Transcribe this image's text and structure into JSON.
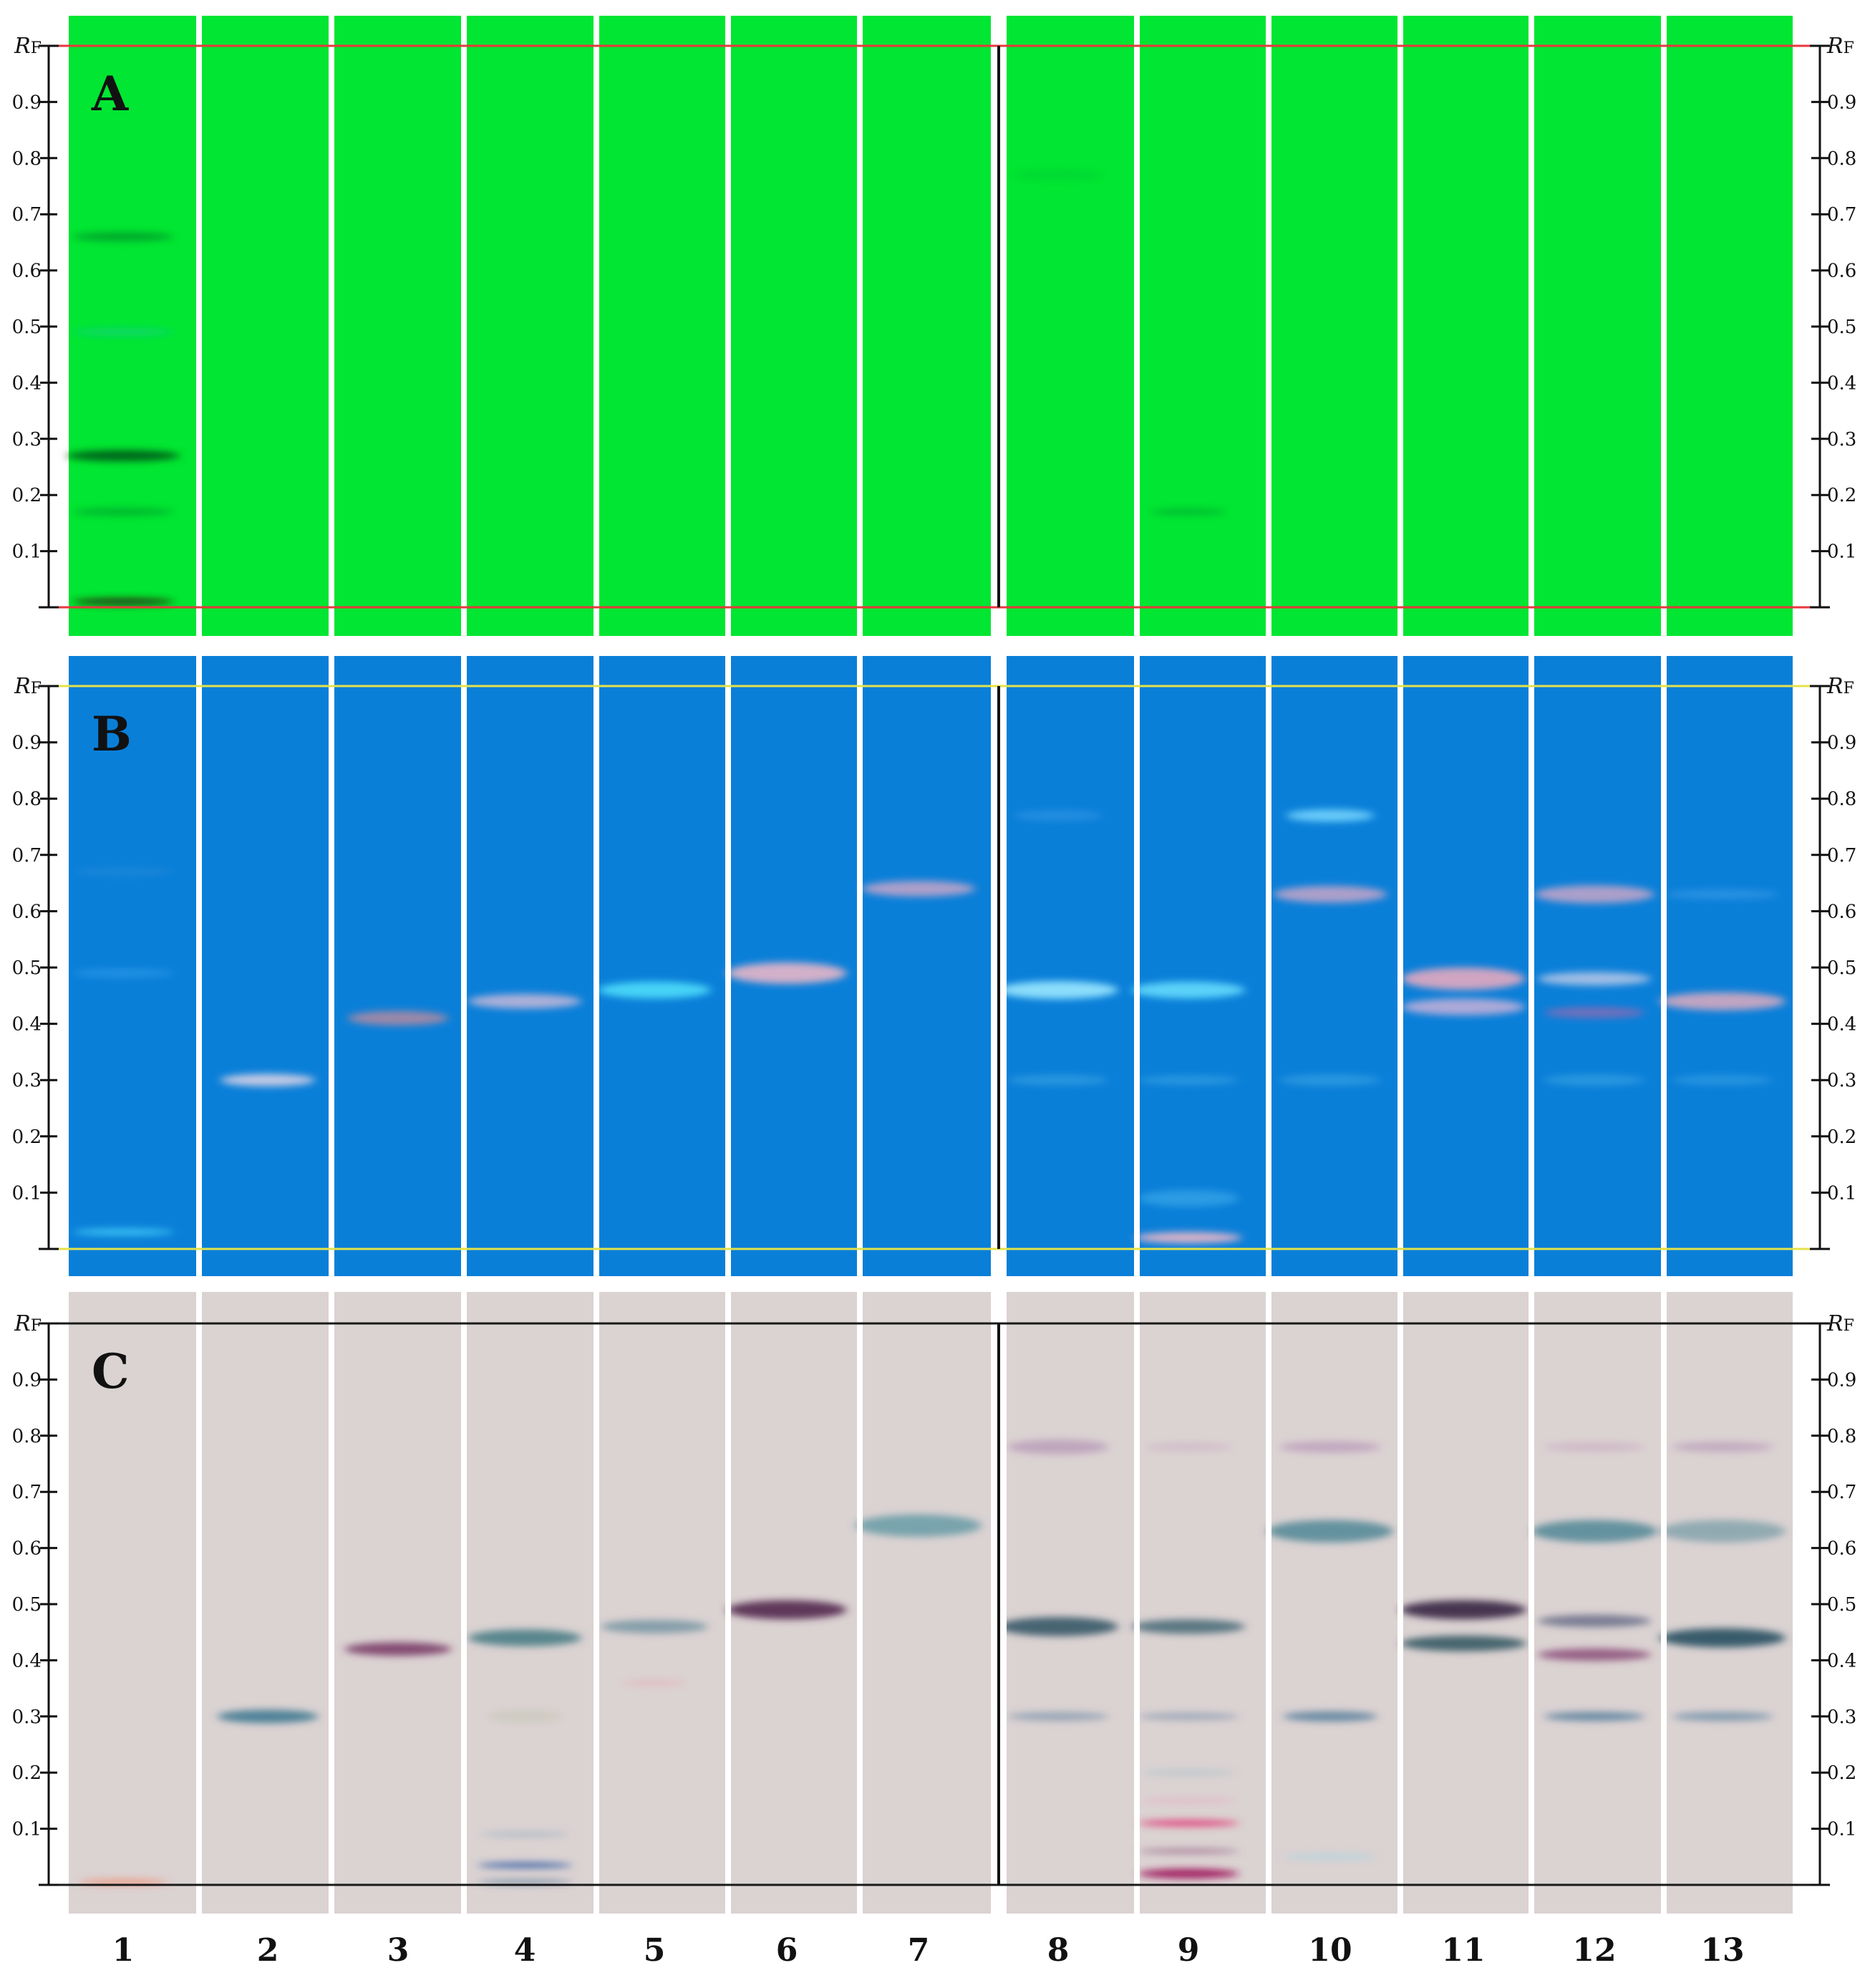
{
  "figure": {
    "lane_labels": [
      "1",
      "2",
      "3",
      "4",
      "5",
      "6",
      "7",
      "8",
      "9",
      "10",
      "11",
      "12",
      "13"
    ],
    "rf_label_italic": "R",
    "rf_label_sub": "F",
    "rf_ticks": [
      "0.1",
      "0.2",
      "0.3",
      "0.4",
      "0.5",
      "0.6",
      "0.7",
      "0.8",
      "0.9"
    ],
    "panels": [
      {
        "id": "A",
        "label": "A",
        "background": "#00e632",
        "line_color": "#e8373c",
        "bands": [
          {
            "lane": 1,
            "rf": 0.01,
            "color": "#2a2a12",
            "opacity": 0.95,
            "width": 0.8,
            "thickness": 0.012
          },
          {
            "lane": 1,
            "rf": 0.17,
            "color": "#0b8a2c",
            "opacity": 0.5,
            "width": 0.8,
            "thickness": 0.014
          },
          {
            "lane": 1,
            "rf": 0.27,
            "color": "#075a1a",
            "opacity": 0.9,
            "width": 0.9,
            "thickness": 0.02
          },
          {
            "lane": 1,
            "rf": 0.49,
            "color": "#12c8a0",
            "opacity": 0.45,
            "width": 0.8,
            "thickness": 0.016
          },
          {
            "lane": 1,
            "rf": 0.66,
            "color": "#0a7e2a",
            "opacity": 0.6,
            "width": 0.8,
            "thickness": 0.016
          },
          {
            "lane": 9,
            "rf": 0.17,
            "color": "#0b9a30",
            "opacity": 0.55,
            "width": 0.6,
            "thickness": 0.012
          },
          {
            "lane": 8,
            "rf": 0.77,
            "color": "#0bc236",
            "opacity": 0.35,
            "width": 0.7,
            "thickness": 0.02
          }
        ]
      },
      {
        "id": "B",
        "label": "B",
        "background": "#0a7fd8",
        "line_color": "#e4e24a",
        "bands": [
          {
            "lane": 1,
            "rf": 0.03,
            "color": "#4fe0ff",
            "opacity": 0.7,
            "width": 0.8,
            "thickness": 0.012
          },
          {
            "lane": 1,
            "rf": 0.49,
            "color": "#3aa2f0",
            "opacity": 0.5,
            "width": 0.8,
            "thickness": 0.016
          },
          {
            "lane": 1,
            "rf": 0.67,
            "color": "#2f8fd8",
            "opacity": 0.4,
            "width": 0.8,
            "thickness": 0.014
          },
          {
            "lane": 2,
            "rf": 0.3,
            "color": "#d6d2e6",
            "opacity": 0.9,
            "width": 0.75,
            "thickness": 0.022
          },
          {
            "lane": 3,
            "rf": 0.41,
            "color": "#b48aa0",
            "opacity": 0.85,
            "width": 0.8,
            "thickness": 0.026
          },
          {
            "lane": 4,
            "rf": 0.44,
            "color": "#c8b8d8",
            "opacity": 0.85,
            "width": 0.9,
            "thickness": 0.026
          },
          {
            "lane": 5,
            "rf": 0.46,
            "color": "#56e8ff",
            "opacity": 0.8,
            "width": 0.9,
            "thickness": 0.03
          },
          {
            "lane": 6,
            "rf": 0.49,
            "color": "#e8b6c8",
            "opacity": 0.9,
            "width": 0.95,
            "thickness": 0.038
          },
          {
            "lane": 7,
            "rf": 0.64,
            "color": "#c8a6c8",
            "opacity": 0.85,
            "width": 0.9,
            "thickness": 0.028
          },
          {
            "lane": 8,
            "rf": 0.46,
            "color": "#9ae8ff",
            "opacity": 0.9,
            "width": 0.95,
            "thickness": 0.032
          },
          {
            "lane": 8,
            "rf": 0.3,
            "color": "#48b0e8",
            "opacity": 0.5,
            "width": 0.8,
            "thickness": 0.018
          },
          {
            "lane": 8,
            "rf": 0.77,
            "color": "#4aa6ee",
            "opacity": 0.4,
            "width": 0.7,
            "thickness": 0.018
          },
          {
            "lane": 9,
            "rf": 0.46,
            "color": "#6ae0ff",
            "opacity": 0.85,
            "width": 0.9,
            "thickness": 0.03
          },
          {
            "lane": 9,
            "rf": 0.3,
            "color": "#48b0e8",
            "opacity": 0.5,
            "width": 0.8,
            "thickness": 0.016
          },
          {
            "lane": 9,
            "rf": 0.02,
            "color": "#f0b8c8",
            "opacity": 0.9,
            "width": 0.85,
            "thickness": 0.02
          },
          {
            "lane": 9,
            "rf": 0.09,
            "color": "#4ab8f0",
            "opacity": 0.5,
            "width": 0.8,
            "thickness": 0.03
          },
          {
            "lane": 10,
            "rf": 0.77,
            "color": "#7ad8ff",
            "opacity": 0.85,
            "width": 0.7,
            "thickness": 0.022
          },
          {
            "lane": 10,
            "rf": 0.63,
            "color": "#c8a6c8",
            "opacity": 0.85,
            "width": 0.9,
            "thickness": 0.03
          },
          {
            "lane": 10,
            "rf": 0.3,
            "color": "#48b0e8",
            "opacity": 0.5,
            "width": 0.8,
            "thickness": 0.02
          },
          {
            "lane": 11,
            "rf": 0.48,
            "color": "#e4a8c0",
            "opacity": 0.9,
            "width": 0.98,
            "thickness": 0.04
          },
          {
            "lane": 11,
            "rf": 0.43,
            "color": "#c8b0d8",
            "opacity": 0.85,
            "width": 0.98,
            "thickness": 0.03
          },
          {
            "lane": 12,
            "rf": 0.63,
            "color": "#c8a6c8",
            "opacity": 0.85,
            "width": 0.95,
            "thickness": 0.032
          },
          {
            "lane": 12,
            "rf": 0.48,
            "color": "#b8c8e8",
            "opacity": 0.85,
            "width": 0.9,
            "thickness": 0.024
          },
          {
            "lane": 12,
            "rf": 0.42,
            "color": "#9a6ab0",
            "opacity": 0.7,
            "width": 0.8,
            "thickness": 0.02
          },
          {
            "lane": 12,
            "rf": 0.3,
            "color": "#48b0e8",
            "opacity": 0.5,
            "width": 0.8,
            "thickness": 0.02
          },
          {
            "lane": 13,
            "rf": 0.44,
            "color": "#d4a8c0",
            "opacity": 0.9,
            "width": 1.0,
            "thickness": 0.032
          },
          {
            "lane": 13,
            "rf": 0.63,
            "color": "#4aa6ee",
            "opacity": 0.5,
            "width": 0.9,
            "thickness": 0.016
          },
          {
            "lane": 13,
            "rf": 0.3,
            "color": "#48b0e8",
            "opacity": 0.45,
            "width": 0.8,
            "thickness": 0.018
          }
        ]
      },
      {
        "id": "C",
        "label": "C",
        "background": "#dbd2d2",
        "line_color": "#1a1a1a",
        "bands": [
          {
            "lane": 1,
            "rf": 0.005,
            "color": "#f2896a",
            "opacity": 0.75,
            "width": 0.7,
            "thickness": 0.006
          },
          {
            "lane": 2,
            "rf": 0.3,
            "color": "#4a7e96",
            "opacity": 0.95,
            "width": 0.8,
            "thickness": 0.024
          },
          {
            "lane": 3,
            "rf": 0.42,
            "color": "#7a3e68",
            "opacity": 0.9,
            "width": 0.85,
            "thickness": 0.024
          },
          {
            "lane": 4,
            "rf": 0.44,
            "color": "#4a7e86",
            "opacity": 0.9,
            "width": 0.9,
            "thickness": 0.03
          },
          {
            "lane": 4,
            "rf": 0.3,
            "color": "#c6c8b8",
            "opacity": 0.6,
            "width": 0.6,
            "thickness": 0.024
          },
          {
            "lane": 4,
            "rf": 0.09,
            "color": "#9ab0c0",
            "opacity": 0.6,
            "width": 0.7,
            "thickness": 0.008
          },
          {
            "lane": 4,
            "rf": 0.035,
            "color": "#3e66a8",
            "opacity": 0.95,
            "width": 0.75,
            "thickness": 0.01
          },
          {
            "lane": 4,
            "rf": 0.005,
            "color": "#6a86a0",
            "opacity": 0.7,
            "width": 0.75,
            "thickness": 0.006
          },
          {
            "lane": 5,
            "rf": 0.46,
            "color": "#6a8e9c",
            "opacity": 0.75,
            "width": 0.85,
            "thickness": 0.024
          },
          {
            "lane": 5,
            "rf": 0.36,
            "color": "#e8a8b0",
            "opacity": 0.5,
            "width": 0.5,
            "thickness": 0.006
          },
          {
            "lane": 6,
            "rf": 0.49,
            "color": "#5a2e52",
            "opacity": 0.95,
            "width": 0.95,
            "thickness": 0.034
          },
          {
            "lane": 7,
            "rf": 0.64,
            "color": "#6e9ea8",
            "opacity": 0.9,
            "width": 1.0,
            "thickness": 0.04
          },
          {
            "lane": 8,
            "rf": 0.78,
            "color": "#b89ab8",
            "opacity": 0.8,
            "width": 0.8,
            "thickness": 0.026
          },
          {
            "lane": 8,
            "rf": 0.46,
            "color": "#3e5e6e",
            "opacity": 0.95,
            "width": 0.95,
            "thickness": 0.034
          },
          {
            "lane": 8,
            "rf": 0.3,
            "color": "#8a9cb0",
            "opacity": 0.8,
            "width": 0.8,
            "thickness": 0.016
          },
          {
            "lane": 9,
            "rf": 0.78,
            "color": "#c8a8c0",
            "opacity": 0.5,
            "width": 0.7,
            "thickness": 0.014
          },
          {
            "lane": 9,
            "rf": 0.46,
            "color": "#4e6e7a",
            "opacity": 0.9,
            "width": 0.9,
            "thickness": 0.026
          },
          {
            "lane": 9,
            "rf": 0.3,
            "color": "#8a9cb0",
            "opacity": 0.7,
            "width": 0.8,
            "thickness": 0.014
          },
          {
            "lane": 9,
            "rf": 0.2,
            "color": "#a8c0c8",
            "opacity": 0.6,
            "width": 0.75,
            "thickness": 0.01
          },
          {
            "lane": 9,
            "rf": 0.15,
            "color": "#e8a8c0",
            "opacity": 0.5,
            "width": 0.75,
            "thickness": 0.01
          },
          {
            "lane": 9,
            "rf": 0.11,
            "color": "#e0407a",
            "opacity": 0.9,
            "width": 0.8,
            "thickness": 0.012
          },
          {
            "lane": 9,
            "rf": 0.06,
            "color": "#9a6e8a",
            "opacity": 0.7,
            "width": 0.8,
            "thickness": 0.01
          },
          {
            "lane": 9,
            "rf": 0.02,
            "color": "#a02060",
            "opacity": 0.95,
            "width": 0.8,
            "thickness": 0.018
          },
          {
            "lane": 10,
            "rf": 0.78,
            "color": "#b89ab8",
            "opacity": 0.75,
            "width": 0.8,
            "thickness": 0.02
          },
          {
            "lane": 10,
            "rf": 0.63,
            "color": "#5e8e9c",
            "opacity": 0.95,
            "width": 1.0,
            "thickness": 0.04
          },
          {
            "lane": 10,
            "rf": 0.3,
            "color": "#5e84a0",
            "opacity": 0.9,
            "width": 0.75,
            "thickness": 0.018
          },
          {
            "lane": 10,
            "rf": 0.05,
            "color": "#a8d4e0",
            "opacity": 0.7,
            "width": 0.75,
            "thickness": 0.008
          },
          {
            "lane": 11,
            "rf": 0.49,
            "color": "#3e2a48",
            "opacity": 0.95,
            "width": 1.0,
            "thickness": 0.034
          },
          {
            "lane": 11,
            "rf": 0.43,
            "color": "#3e6068",
            "opacity": 0.95,
            "width": 1.0,
            "thickness": 0.028
          },
          {
            "lane": 12,
            "rf": 0.78,
            "color": "#c8a8c0",
            "opacity": 0.6,
            "width": 0.8,
            "thickness": 0.016
          },
          {
            "lane": 12,
            "rf": 0.63,
            "color": "#5e8e9c",
            "opacity": 0.95,
            "width": 1.0,
            "thickness": 0.04
          },
          {
            "lane": 12,
            "rf": 0.47,
            "color": "#6a6e88",
            "opacity": 0.85,
            "width": 0.9,
            "thickness": 0.022
          },
          {
            "lane": 12,
            "rf": 0.41,
            "color": "#8a4e78",
            "opacity": 0.85,
            "width": 0.9,
            "thickness": 0.022
          },
          {
            "lane": 12,
            "rf": 0.3,
            "color": "#5e84a0",
            "opacity": 0.9,
            "width": 0.8,
            "thickness": 0.016
          },
          {
            "lane": 13,
            "rf": 0.78,
            "color": "#b89ab8",
            "opacity": 0.7,
            "width": 0.8,
            "thickness": 0.018
          },
          {
            "lane": 13,
            "rf": 0.63,
            "color": "#7ea0aa",
            "opacity": 0.8,
            "width": 1.0,
            "thickness": 0.04
          },
          {
            "lane": 13,
            "rf": 0.44,
            "color": "#2e5466",
            "opacity": 0.95,
            "width": 1.0,
            "thickness": 0.034
          },
          {
            "lane": 13,
            "rf": 0.3,
            "color": "#6e8ea8",
            "opacity": 0.8,
            "width": 0.8,
            "thickness": 0.016
          }
        ]
      }
    ]
  }
}
